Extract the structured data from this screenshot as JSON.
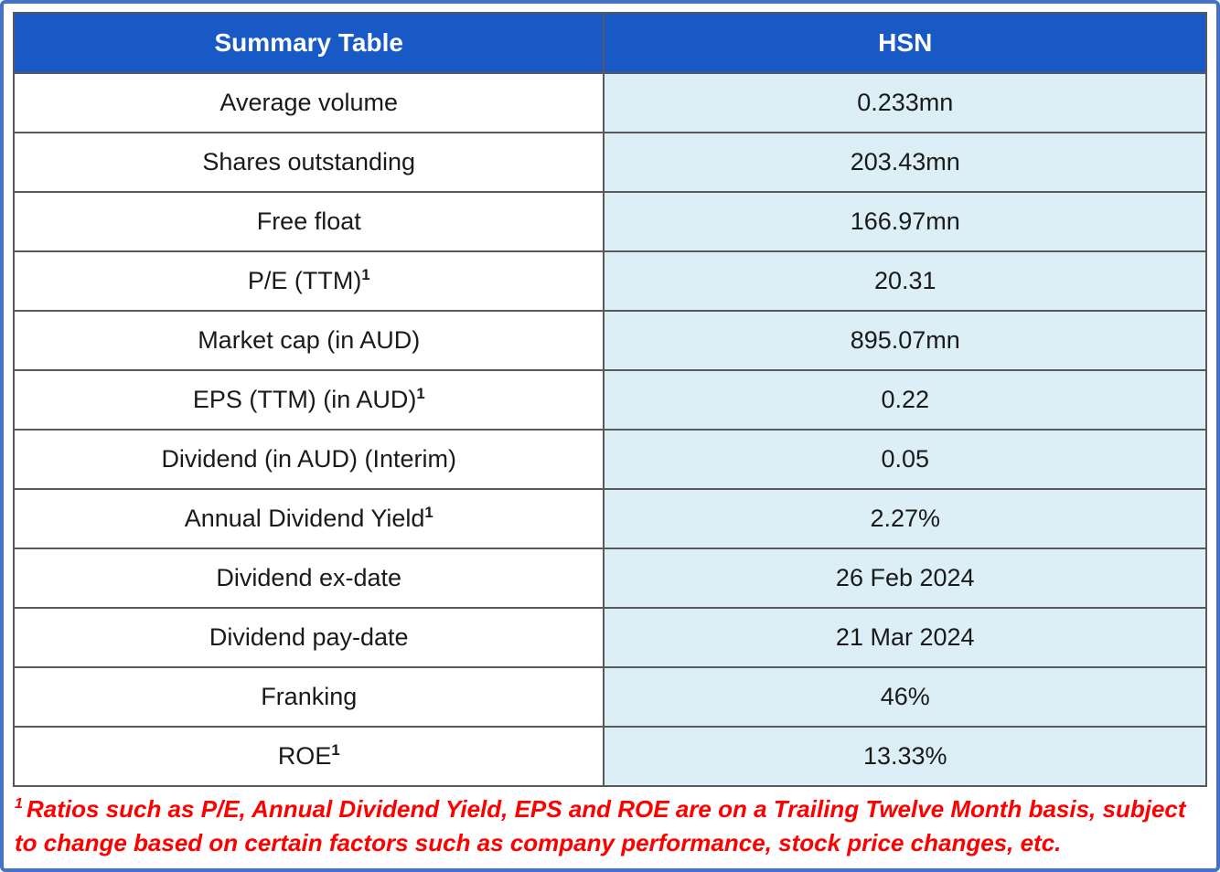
{
  "table": {
    "header": {
      "col1": "Summary Table",
      "col2": "HSN"
    },
    "rows": [
      {
        "label": "Average volume",
        "sup": "",
        "value": "0.233mn"
      },
      {
        "label": "Shares outstanding",
        "sup": "",
        "value": "203.43mn"
      },
      {
        "label": "Free float",
        "sup": "",
        "value": "166.97mn"
      },
      {
        "label": "P/E (TTM)",
        "sup": "1",
        "value": "20.31"
      },
      {
        "label": "Market cap (in AUD)",
        "sup": "",
        "value": "895.07mn"
      },
      {
        "label": "EPS (TTM) (in AUD)",
        "sup": "1",
        "value": "0.22"
      },
      {
        "label": "Dividend (in AUD) (Interim)",
        "sup": "",
        "value": "0.05"
      },
      {
        "label": "Annual Dividend Yield",
        "sup": "1",
        "value": "2.27%"
      },
      {
        "label": "Dividend ex-date",
        "sup": "",
        "value": "26 Feb 2024"
      },
      {
        "label": "Dividend pay-date",
        "sup": "",
        "value": "21 Mar 2024"
      },
      {
        "label": "Franking",
        "sup": "",
        "value": "46%"
      },
      {
        "label": "ROE",
        "sup": "1",
        "value": "13.33%"
      }
    ]
  },
  "footnote": {
    "sup": "1",
    "text": "Ratios such as P/E, Annual Dividend Yield, EPS and ROE are on a Trailing Twelve Month basis, subject to change based on certain factors such as company performance, stock price changes, etc."
  },
  "colors": {
    "header_blue": "#1859C6",
    "value_cell_blue": "#DCEFF6",
    "cell_border_gray": "#595959",
    "frame_blue": "#4472C4",
    "footnote_red": "#FE0000"
  }
}
